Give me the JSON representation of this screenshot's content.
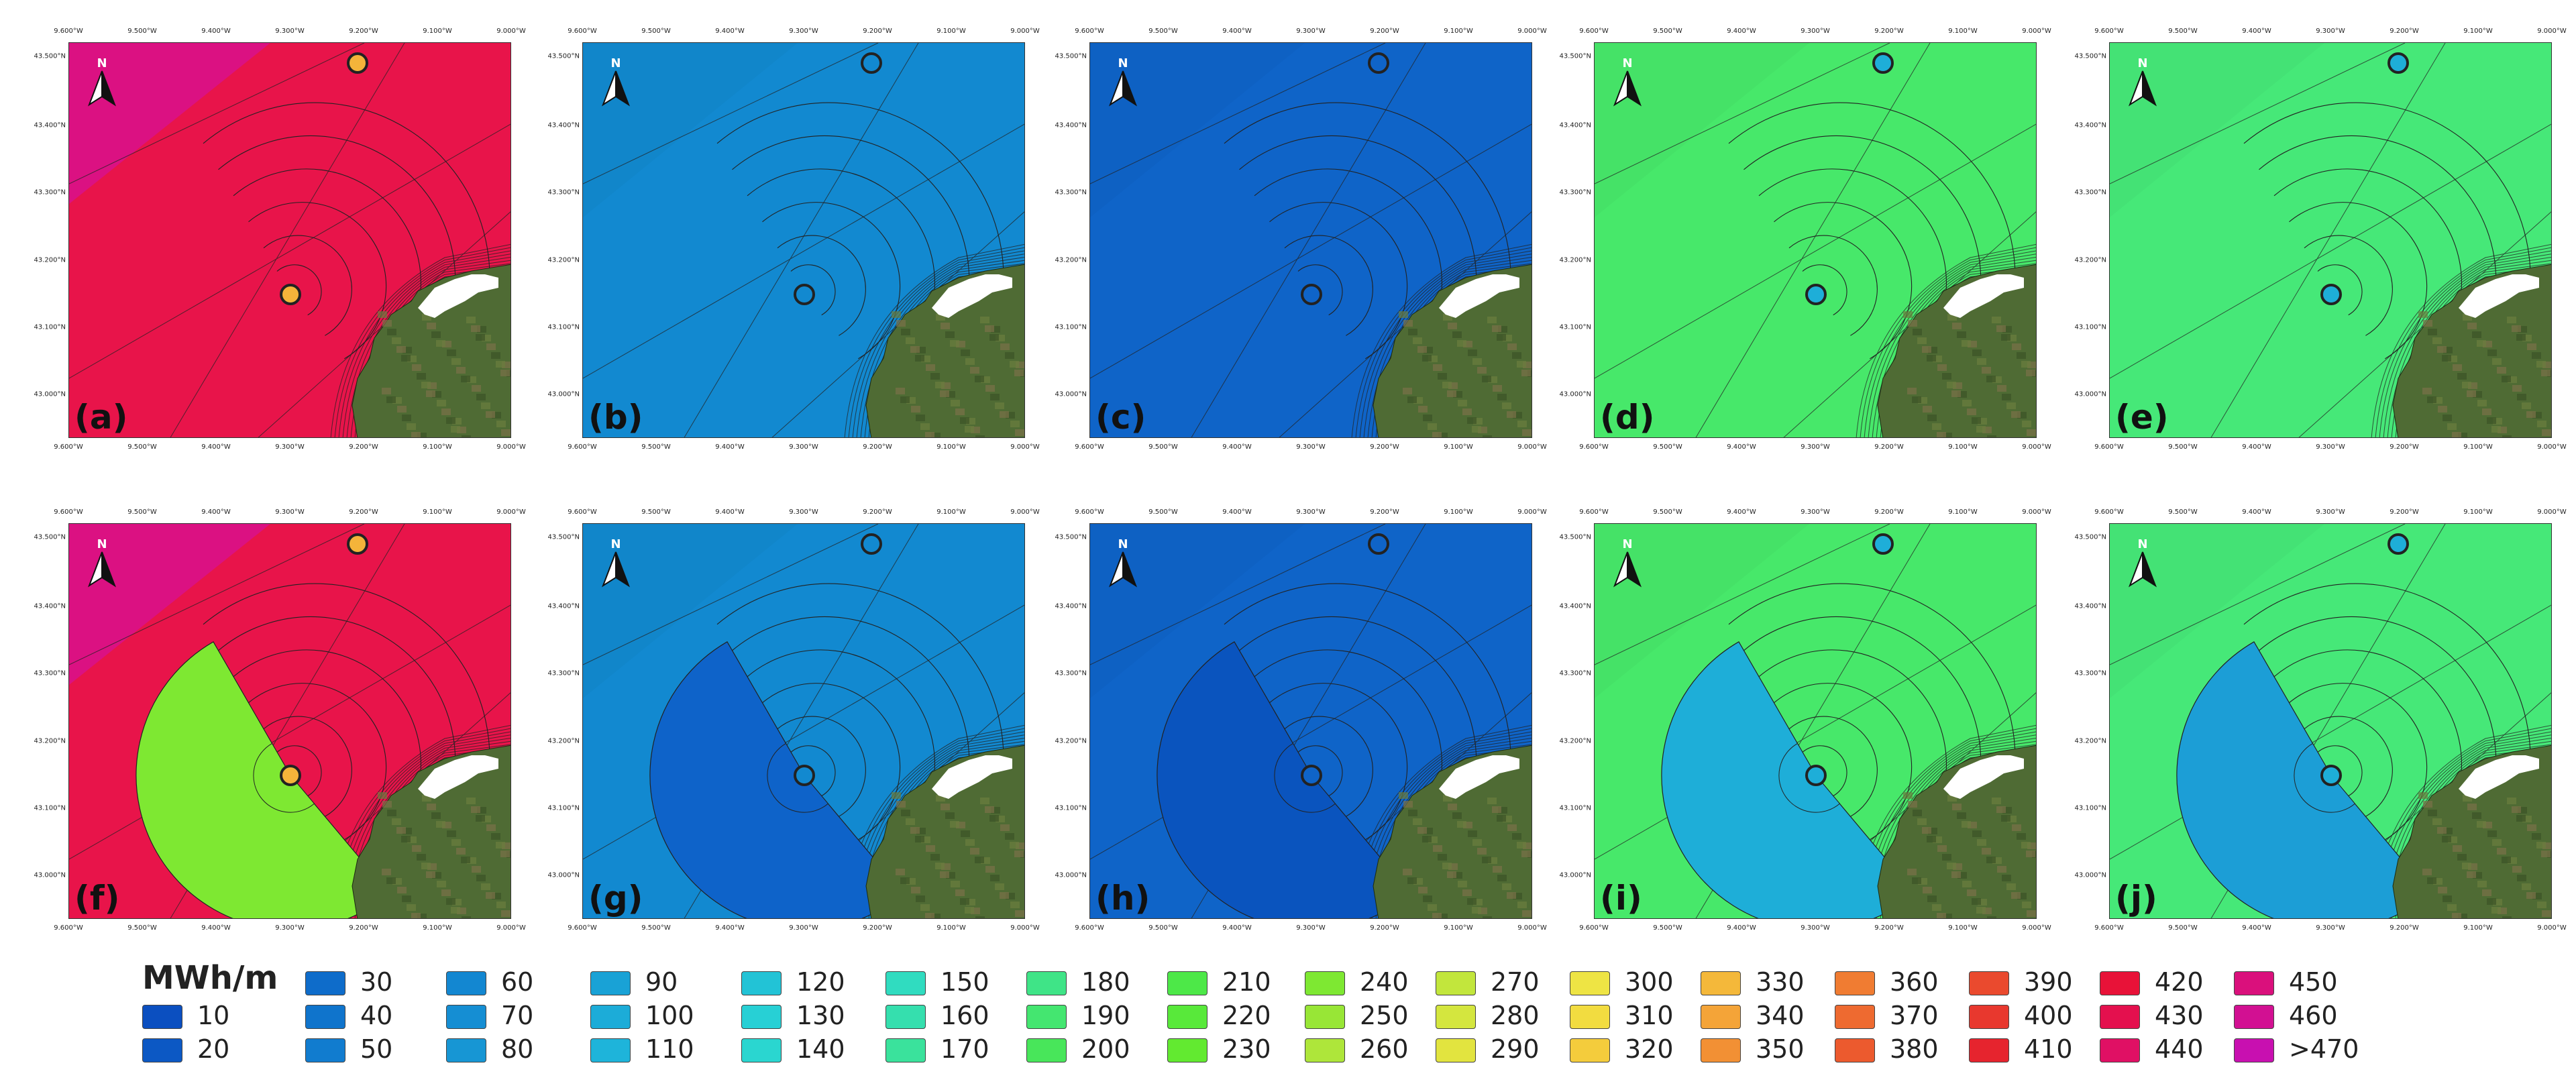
{
  "lon_ticks": [
    "9.600°W",
    "9.500°W",
    "9.400°W",
    "9.300°W",
    "9.200°W",
    "9.100°W",
    "9.000°W"
  ],
  "lat_ticks": [
    "43.500°N",
    "43.400°N",
    "43.300°N",
    "43.200°N",
    "43.100°N",
    "43.000°N"
  ],
  "north_label": "N",
  "panels": [
    {
      "label": "(a)",
      "bg": "#e8144a",
      "zone": false
    },
    {
      "label": "(b)",
      "bg": "#1289d0",
      "zone": false
    },
    {
      "label": "(c)",
      "bg": "#0f64c8",
      "zone": false
    },
    {
      "label": "(d)",
      "bg": "#47e86a",
      "zone": false
    },
    {
      "label": "(e)",
      "bg": "#46e878",
      "zone": false
    },
    {
      "label": "(f)",
      "bg": "#e8144a",
      "zone": true,
      "zone_color": "#7ee832"
    },
    {
      "label": "(g)",
      "bg": "#1289d0",
      "zone": true,
      "zone_color": "#0e63c9"
    },
    {
      "label": "(h)",
      "bg": "#0f64c8",
      "zone": true,
      "zone_color": "#0a54be"
    },
    {
      "label": "(i)",
      "bg": "#47e86a",
      "zone": true,
      "zone_color": "#1eaed8"
    },
    {
      "label": "(j)",
      "bg": "#46e878",
      "zone": true,
      "zone_color": "#1c9ed6"
    }
  ],
  "legend": {
    "title": "MWh/m",
    "items": [
      {
        "label": "10",
        "color": "#0b4fc0"
      },
      {
        "label": "20",
        "color": "#0c58c4"
      },
      {
        "label": "30",
        "color": "#0e6cca"
      },
      {
        "label": "40",
        "color": "#0f74cc"
      },
      {
        "label": "50",
        "color": "#117ccf"
      },
      {
        "label": "60",
        "color": "#1387d1"
      },
      {
        "label": "70",
        "color": "#158ed3"
      },
      {
        "label": "80",
        "color": "#1796d4"
      },
      {
        "label": "90",
        "color": "#19a2d6"
      },
      {
        "label": "100",
        "color": "#1cacd8"
      },
      {
        "label": "110",
        "color": "#1eb4da"
      },
      {
        "label": "120",
        "color": "#22c3d6"
      },
      {
        "label": "130",
        "color": "#27d0d5"
      },
      {
        "label": "140",
        "color": "#2ad6d0"
      },
      {
        "label": "150",
        "color": "#30dcc0"
      },
      {
        "label": "160",
        "color": "#35dfae"
      },
      {
        "label": "170",
        "color": "#3ae29c"
      },
      {
        "label": "180",
        "color": "#3fe487"
      },
      {
        "label": "190",
        "color": "#44e670"
      },
      {
        "label": "200",
        "color": "#48e65a"
      },
      {
        "label": "210",
        "color": "#4de848"
      },
      {
        "label": "220",
        "color": "#58e93a"
      },
      {
        "label": "230",
        "color": "#62ea30"
      },
      {
        "label": "240",
        "color": "#7ee832"
      },
      {
        "label": "250",
        "color": "#98e636"
      },
      {
        "label": "260",
        "color": "#aee63a"
      },
      {
        "label": "270",
        "color": "#c2e63c"
      },
      {
        "label": "280",
        "color": "#d4e63e"
      },
      {
        "label": "290",
        "color": "#e2e43f"
      },
      {
        "label": "300",
        "color": "#eee444"
      },
      {
        "label": "310",
        "color": "#f2dc40"
      },
      {
        "label": "320",
        "color": "#f4cc3c"
      },
      {
        "label": "330",
        "color": "#f4b83a"
      },
      {
        "label": "340",
        "color": "#f4a438"
      },
      {
        "label": "350",
        "color": "#f29034"
      },
      {
        "label": "360",
        "color": "#f07c32"
      },
      {
        "label": "370",
        "color": "#ee6a30"
      },
      {
        "label": "380",
        "color": "#ec5a2e"
      },
      {
        "label": "390",
        "color": "#ea4a2e"
      },
      {
        "label": "400",
        "color": "#e8382e"
      },
      {
        "label": "410",
        "color": "#e6242e"
      },
      {
        "label": "420",
        "color": "#e81238"
      },
      {
        "label": "430",
        "color": "#e4104e"
      },
      {
        "label": "440",
        "color": "#e01064"
      },
      {
        "label": "450",
        "color": "#da107c"
      },
      {
        "label": "460",
        "color": "#d21092"
      },
      {
        "label": ">470",
        "color": "#c810b0"
      }
    ]
  }
}
